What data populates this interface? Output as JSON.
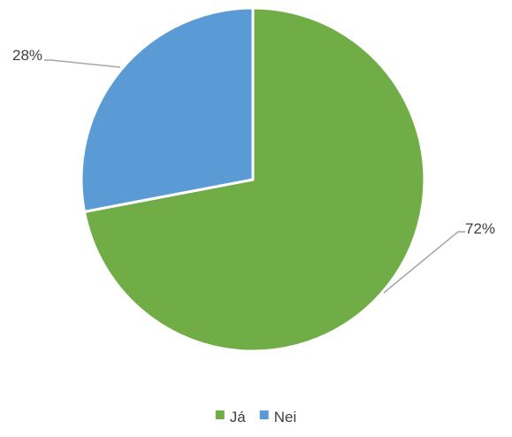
{
  "chart_data": {
    "type": "pie",
    "title": "",
    "categories": [
      "Já",
      "Nei"
    ],
    "values": [
      72,
      28
    ],
    "unit": "%",
    "data_labels": [
      "72%",
      "28%"
    ],
    "colors": [
      "#70AD47",
      "#5B9BD5"
    ],
    "legend": {
      "position": "bottom",
      "entries": [
        "Já",
        "Nei"
      ]
    }
  }
}
